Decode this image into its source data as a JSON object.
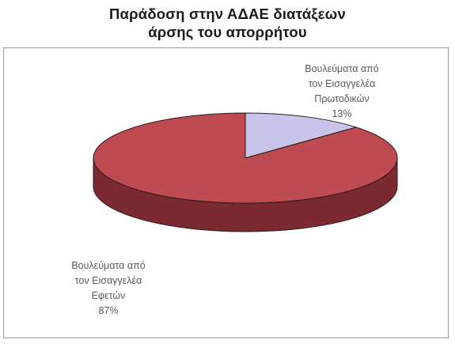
{
  "chart_data": {
    "type": "pie",
    "title": [
      "Παράδοση στην ΑΔΑΕ διατάξεων",
      "άρσης του απορρήτου"
    ],
    "slices": [
      {
        "label": [
          "Βουλεύματα από",
          "τον Εισαγγελέα",
          "Πρωτοδικών"
        ],
        "percent_text": "13%",
        "value": 13,
        "color": "#c9c4ea",
        "side_color": "#8a86a8"
      },
      {
        "label": [
          "Βουλεύματα από",
          "τον Εισαγγελέα",
          "Εφετών"
        ],
        "percent_text": "87%",
        "value": 87,
        "color": "#be4a52",
        "side_color": "#7a2a30"
      }
    ],
    "start_angle_deg": -90,
    "three_d": true,
    "legend": "none"
  }
}
